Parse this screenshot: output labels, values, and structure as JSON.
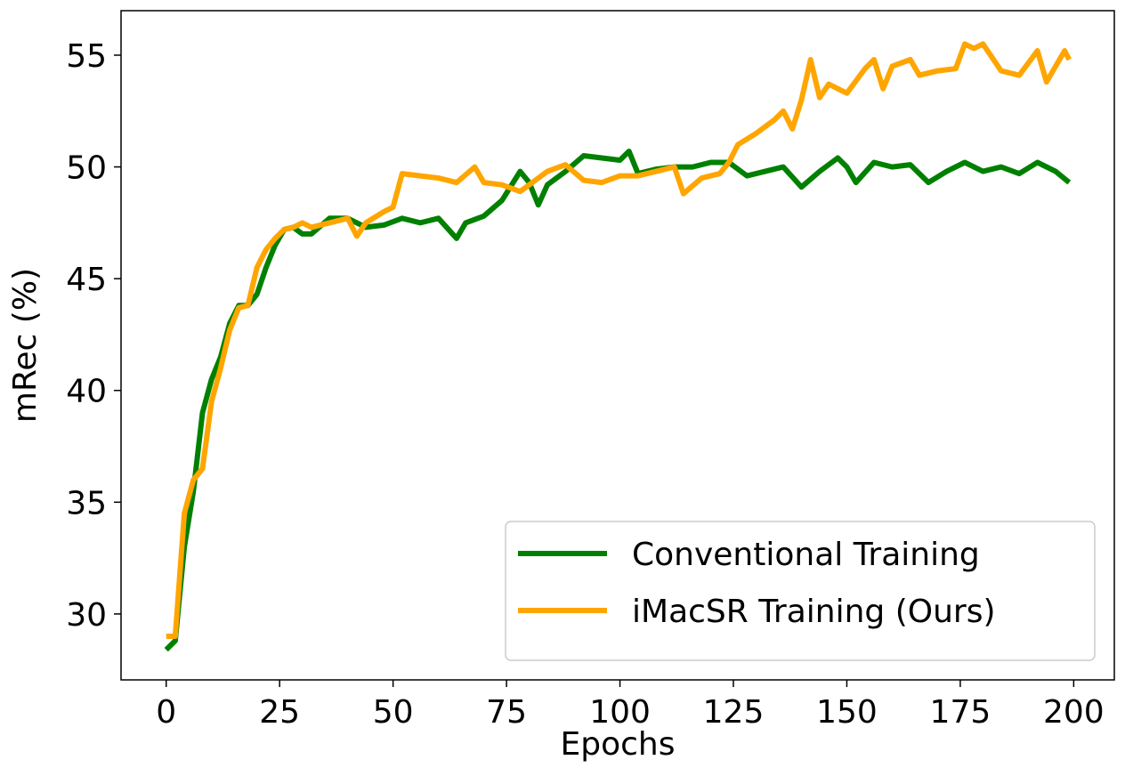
{
  "chart_data": {
    "type": "line",
    "x_label": "Epochs",
    "y_label": "mRec (%)",
    "xlim": [
      -9.95,
      208.95
    ],
    "ylim": [
      27.05,
      56.99
    ],
    "xticks": [
      0,
      25,
      50,
      75,
      100,
      125,
      150,
      175,
      200
    ],
    "yticks": [
      30,
      35,
      40,
      45,
      50,
      55
    ],
    "grid": false,
    "legend": "lower right",
    "series": [
      {
        "name": "Conventional Training",
        "color": "#008000",
        "x": [
          0,
          2,
          4,
          6,
          8,
          10,
          12,
          14,
          16,
          18,
          20,
          22,
          24,
          26,
          28,
          30,
          32,
          36,
          40,
          44,
          48,
          52,
          56,
          60,
          64,
          66,
          70,
          74,
          78,
          80,
          82,
          84,
          88,
          92,
          96,
          100,
          102,
          104,
          108,
          112,
          116,
          120,
          124,
          128,
          132,
          136,
          140,
          144,
          148,
          150,
          152,
          156,
          160,
          164,
          168,
          172,
          176,
          180,
          184,
          188,
          192,
          196,
          199
        ],
        "values": [
          28.4,
          28.8,
          33,
          35.5,
          39,
          40.5,
          41.5,
          43,
          43.8,
          43.8,
          44.3,
          45.5,
          46.5,
          47.2,
          47.3,
          47,
          47,
          47.7,
          47.7,
          47.3,
          47.4,
          47.7,
          47.5,
          47.7,
          46.8,
          47.5,
          47.8,
          48.5,
          49.8,
          49.3,
          48.3,
          49.2,
          49.8,
          50.5,
          50.4,
          50.3,
          50.7,
          49.7,
          49.9,
          50,
          50,
          50.2,
          50.2,
          49.6,
          49.8,
          50,
          49.1,
          49.8,
          50.4,
          50,
          49.3,
          50.2,
          50,
          50.1,
          49.3,
          49.8,
          50.2,
          49.8,
          50,
          49.7,
          50.2,
          49.8,
          49.3
        ]
      },
      {
        "name": "iMacSR Training (Ours)",
        "color": "#ffa500",
        "x": [
          0,
          2,
          4,
          6,
          8,
          10,
          12,
          14,
          16,
          18,
          20,
          22,
          24,
          26,
          28,
          30,
          32,
          36,
          40,
          42,
          44,
          48,
          50,
          52,
          56,
          60,
          64,
          68,
          70,
          74,
          78,
          80,
          84,
          88,
          92,
          96,
          100,
          104,
          108,
          112,
          114,
          118,
          122,
          124,
          126,
          130,
          134,
          136,
          138,
          140,
          142,
          144,
          146,
          150,
          154,
          156,
          158,
          160,
          164,
          166,
          170,
          174,
          176,
          178,
          180,
          184,
          188,
          192,
          194,
          198,
          199
        ],
        "values": [
          29,
          29,
          34.5,
          36,
          36.5,
          39.5,
          41,
          42.7,
          43.7,
          43.8,
          45.5,
          46.3,
          46.8,
          47.2,
          47.3,
          47.5,
          47.3,
          47.5,
          47.7,
          46.9,
          47.5,
          48,
          48.2,
          49.7,
          49.6,
          49.5,
          49.3,
          50,
          49.3,
          49.2,
          48.9,
          49.2,
          49.8,
          50.1,
          49.4,
          49.3,
          49.6,
          49.6,
          49.8,
          50,
          48.8,
          49.5,
          49.7,
          50.2,
          51,
          51.5,
          52.1,
          52.5,
          51.7,
          53,
          54.8,
          53.1,
          53.7,
          53.3,
          54.4,
          54.8,
          53.5,
          54.5,
          54.8,
          54.1,
          54.3,
          54.4,
          55.5,
          55.3,
          55.5,
          54.3,
          54.1,
          55.2,
          53.8,
          55.2,
          54.8
        ]
      }
    ]
  }
}
